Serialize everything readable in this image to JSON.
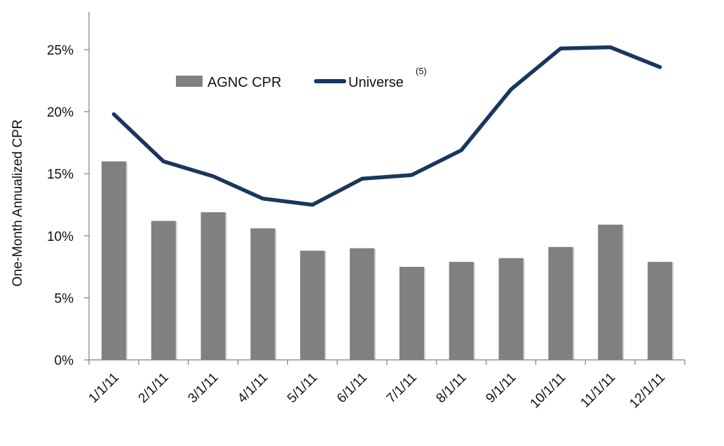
{
  "chart_data": {
    "type": "bar",
    "categories": [
      "1/1/11",
      "2/1/11",
      "3/1/11",
      "4/1/11",
      "5/1/11",
      "6/1/11",
      "7/1/11",
      "8/1/11",
      "9/1/11",
      "10/1/11",
      "11/1/11",
      "12/1/11"
    ],
    "series": [
      {
        "name": "AGNC CPR",
        "kind": "bar",
        "color": "#808080",
        "values": [
          16.0,
          11.2,
          11.9,
          10.6,
          8.8,
          9.0,
          7.5,
          7.9,
          8.2,
          9.1,
          10.9,
          7.9
        ]
      },
      {
        "name": "Universe",
        "name_superscript": "(5)",
        "kind": "line",
        "color": "#1b365d",
        "values": [
          19.8,
          16.0,
          14.8,
          13.0,
          12.5,
          14.6,
          14.9,
          16.9,
          21.8,
          25.1,
          25.2,
          23.6
        ]
      }
    ],
    "ylabel": "One-Month Annualized CPR",
    "xlabel": "",
    "ylim": [
      0,
      27.5
    ],
    "y_ticks": [
      0,
      5,
      10,
      15,
      20,
      25
    ],
    "y_tick_labels": [
      "0%",
      "5%",
      "10%",
      "15%",
      "20%",
      "25%"
    ],
    "grid": false,
    "legend_position": "top-center"
  }
}
